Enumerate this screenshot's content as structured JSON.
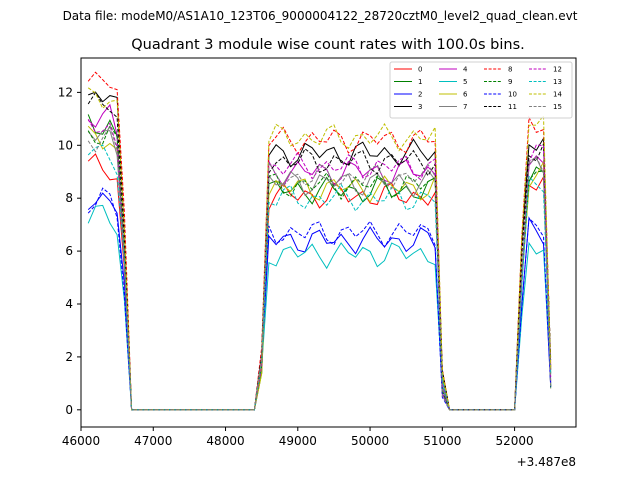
{
  "suptitle": "Data file: modeM0/AS1A10_123T06_9000004122_28720cztM0_level2_quad_clean.evt",
  "chart_data": {
    "type": "line",
    "title": "Quadrant 3 module wise count rates with 100.0s bins.",
    "xlabel": "",
    "ylabel": "",
    "x_offset_label": "+3.487e8",
    "xlim": [
      46000,
      52850
    ],
    "ylim": [
      -0.65,
      13.3
    ],
    "xticks": [
      46000,
      47000,
      48000,
      49000,
      50000,
      51000,
      52000
    ],
    "yticks": [
      0,
      2,
      4,
      6,
      8,
      10,
      12
    ],
    "grid": false,
    "legend": {
      "placement": "top-right",
      "columns": 4
    },
    "series": [
      {
        "name": "0",
        "color": "#ff0000",
        "dash": "solid",
        "base": [
          9.2,
          8.1
        ]
      },
      {
        "name": "1",
        "color": "#008000",
        "dash": "solid",
        "base": [
          10.8,
          8.3
        ]
      },
      {
        "name": "2",
        "color": "#0000ff",
        "dash": "solid",
        "base": [
          8.0,
          6.4
        ]
      },
      {
        "name": "3",
        "color": "#000000",
        "dash": "solid",
        "base": [
          11.9,
          9.7
        ]
      },
      {
        "name": "4",
        "color": "#bf00bf",
        "dash": "solid",
        "base": [
          11.0,
          9.0
        ]
      },
      {
        "name": "5",
        "color": "#00bfbf",
        "dash": "solid",
        "base": [
          7.3,
          5.9
        ]
      },
      {
        "name": "6",
        "color": "#bfbf00",
        "dash": "solid",
        "base": [
          10.2,
          8.4
        ]
      },
      {
        "name": "7",
        "color": "#808080",
        "dash": "solid",
        "base": [
          10.5,
          8.6
        ]
      },
      {
        "name": "8",
        "color": "#ff0000",
        "dash": "dashed",
        "base": [
          12.6,
          10.2
        ]
      },
      {
        "name": "9",
        "color": "#008000",
        "dash": "dashed",
        "base": [
          10.4,
          8.5
        ]
      },
      {
        "name": "10",
        "color": "#0000ff",
        "dash": "dashed",
        "base": [
          7.9,
          6.7
        ]
      },
      {
        "name": "11",
        "color": "#000000",
        "dash": "dashed",
        "base": [
          11.5,
          9.4
        ]
      },
      {
        "name": "12",
        "color": "#bf00bf",
        "dash": "dashed",
        "base": [
          10.6,
          9.2
        ]
      },
      {
        "name": "13",
        "color": "#00bfbf",
        "dash": "dashed",
        "base": [
          9.8,
          8.0
        ]
      },
      {
        "name": "14",
        "color": "#bfbf00",
        "dash": "dashed",
        "base": [
          11.9,
          10.3
        ]
      },
      {
        "name": "15",
        "color": "#808080",
        "dash": "dashed",
        "base": [
          10.3,
          8.8
        ]
      }
    ]
  }
}
